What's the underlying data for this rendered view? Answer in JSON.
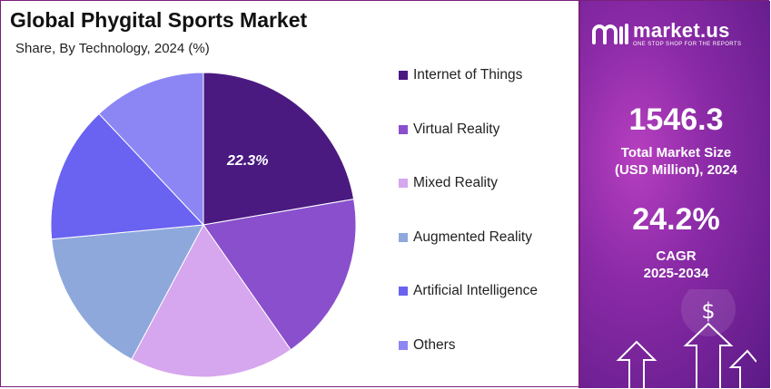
{
  "header": {
    "title": "Global Phygital Sports Market",
    "subtitle": "Share, By Technology, 2024 (%)"
  },
  "chart_data": {
    "type": "pie",
    "categories": [
      "Internet of Things",
      "Virtual Reality",
      "Mixed Reality",
      "Augmented Reality",
      "Artificial Intelligence",
      "Others"
    ],
    "values": [
      22.3,
      18.0,
      17.5,
      15.7,
      14.5,
      12.0
    ],
    "colors": [
      "#4a1a80",
      "#8a4fcc",
      "#d6a6ee",
      "#8fa8dc",
      "#6a62f0",
      "#8c86f4"
    ],
    "data_labels": [
      "22.3%",
      "",
      "",
      "",
      "",
      ""
    ],
    "legend_position": "right",
    "start_angle_deg": 0,
    "direction": "clockwise"
  },
  "panel": {
    "brand_name": "market.us",
    "brand_tagline": "ONE STOP SHOP FOR THE REPORTS",
    "market_size_value": "1546.3",
    "market_size_label_line1": "Total Market Size",
    "market_size_label_line2": "(USD Million), 2024",
    "cagr_value": "24.2%",
    "cagr_label_line1": "CAGR",
    "cagr_label_line2": "2025-2034",
    "icon": "growth-arrows-dollar-icon",
    "background_color": "#8a2aa6"
  }
}
